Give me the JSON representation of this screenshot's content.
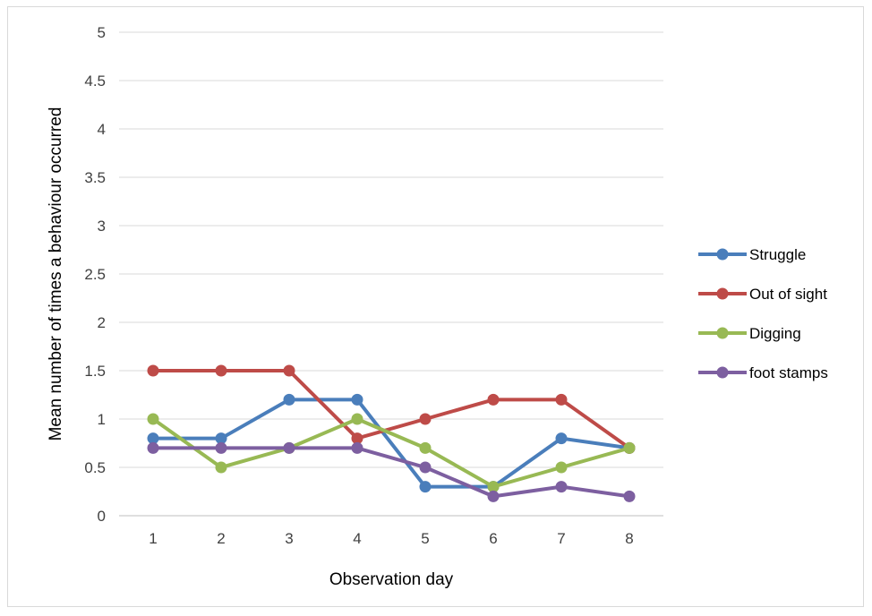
{
  "chart_data": {
    "type": "line",
    "title": "",
    "xlabel": "Observation day",
    "ylabel": "Mean number of times a behaviour occurred",
    "categories": [
      "1",
      "2",
      "3",
      "4",
      "5",
      "6",
      "7",
      "8"
    ],
    "ylim": [
      0,
      5
    ],
    "yticks": [
      "0",
      "0.5",
      "1",
      "1.5",
      "2",
      "2.5",
      "3",
      "3.5",
      "4",
      "4.5",
      "5"
    ],
    "grid": true,
    "legend_position": "right",
    "series": [
      {
        "name": "Struggle",
        "color": "#4a7ebb",
        "values": [
          0.8,
          0.8,
          1.2,
          1.2,
          0.3,
          0.3,
          0.8,
          0.7
        ]
      },
      {
        "name": "Out of sight",
        "color": "#be4b48",
        "values": [
          1.5,
          1.5,
          1.5,
          0.8,
          1.0,
          1.2,
          1.2,
          0.7
        ]
      },
      {
        "name": "Digging",
        "color": "#98b954",
        "values": [
          1.0,
          0.5,
          0.7,
          1.0,
          0.7,
          0.3,
          0.5,
          0.7
        ]
      },
      {
        "name": "foot stamps",
        "color": "#7d5fa0",
        "values": [
          0.7,
          0.7,
          0.7,
          0.7,
          0.5,
          0.2,
          0.3,
          0.2
        ]
      }
    ]
  }
}
